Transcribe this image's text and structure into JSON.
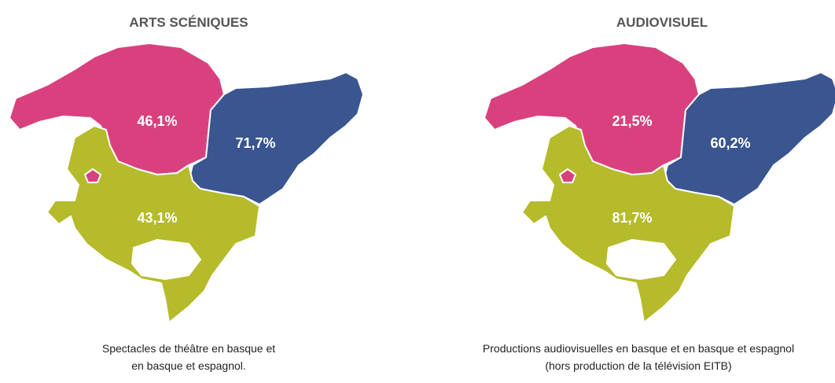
{
  "maps": [
    {
      "title": "ARTS SCÉNIQUES",
      "regions": [
        {
          "label": "46,1%",
          "color": "#d9417e"
        },
        {
          "label": "71,7%",
          "color": "#3a5590"
        },
        {
          "label": "43,1%",
          "color": "#b5bb2a"
        }
      ],
      "caption": [
        "Spectacles de théâtre en basque et",
        "en basque et espagnol."
      ]
    },
    {
      "title": "AUDIOVISUEL",
      "regions": [
        {
          "label": "21,5%",
          "color": "#d9417e"
        },
        {
          "label": "60,2%",
          "color": "#3a5590"
        },
        {
          "label": "81,7%",
          "color": "#b5bb2a"
        }
      ],
      "caption": [
        "Productions audiovisuelles en basque et en basque et espagnol",
        "(hors production de la télévision EITB)"
      ]
    }
  ]
}
